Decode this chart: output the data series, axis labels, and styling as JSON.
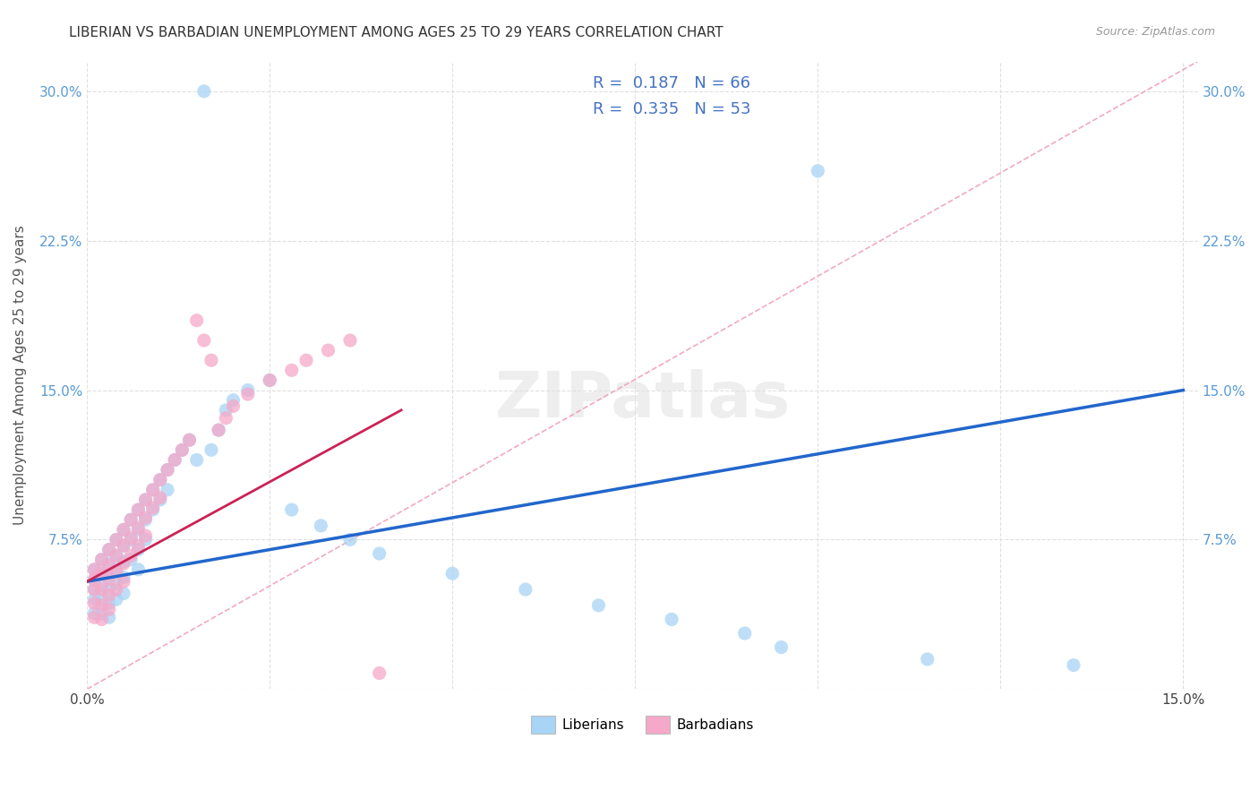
{
  "title": "LIBERIAN VS BARBADIAN UNEMPLOYMENT AMONG AGES 25 TO 29 YEARS CORRELATION CHART",
  "source": "Source: ZipAtlas.com",
  "ylabel": "Unemployment Among Ages 25 to 29 years",
  "xlim": [
    0.0,
    0.152
  ],
  "ylim": [
    0.0,
    0.315
  ],
  "xticks": [
    0.0,
    0.025,
    0.05,
    0.075,
    0.1,
    0.125,
    0.15
  ],
  "yticks": [
    0.0,
    0.075,
    0.15,
    0.225,
    0.3
  ],
  "liberian_color": "#a8d4f5",
  "barbadian_color": "#f5a8c8",
  "liberian_line_color": "#2266cc",
  "barbadian_line_color": "#cc2255",
  "diagonal_color": "#f0a0b8",
  "grid_color": "#e0e0e0",
  "watermark": "ZIPatlas",
  "r1": "0.187",
  "n1": "66",
  "r2": "0.335",
  "n2": "53",
  "lib_line": [
    0.0,
    0.15,
    0.054,
    0.15
  ],
  "barb_line": [
    0.0,
    0.043,
    0.054,
    0.14
  ],
  "diag_line": [
    0.0,
    0.152,
    0.0,
    0.315
  ],
  "liberian_x": [
    0.001,
    0.001,
    0.001,
    0.001,
    0.001,
    0.002,
    0.002,
    0.002,
    0.002,
    0.002,
    0.003,
    0.003,
    0.003,
    0.003,
    0.003,
    0.003,
    0.004,
    0.004,
    0.004,
    0.004,
    0.004,
    0.005,
    0.005,
    0.005,
    0.005,
    0.005,
    0.006,
    0.006,
    0.006,
    0.007,
    0.007,
    0.007,
    0.007,
    0.008,
    0.008,
    0.008,
    0.009,
    0.009,
    0.01,
    0.01,
    0.011,
    0.011,
    0.012,
    0.013,
    0.014,
    0.015,
    0.016,
    0.017,
    0.018,
    0.019,
    0.02,
    0.022,
    0.025,
    0.028,
    0.032,
    0.036,
    0.04,
    0.05,
    0.06,
    0.07,
    0.08,
    0.09,
    0.095,
    0.1,
    0.115,
    0.135
  ],
  "liberian_y": [
    0.06,
    0.055,
    0.05,
    0.045,
    0.038,
    0.065,
    0.058,
    0.052,
    0.045,
    0.038,
    0.07,
    0.063,
    0.057,
    0.05,
    0.043,
    0.036,
    0.075,
    0.067,
    0.06,
    0.053,
    0.045,
    0.08,
    0.072,
    0.064,
    0.056,
    0.048,
    0.085,
    0.075,
    0.065,
    0.09,
    0.08,
    0.07,
    0.06,
    0.095,
    0.085,
    0.075,
    0.1,
    0.09,
    0.105,
    0.095,
    0.11,
    0.1,
    0.115,
    0.12,
    0.125,
    0.115,
    0.3,
    0.12,
    0.13,
    0.14,
    0.145,
    0.15,
    0.155,
    0.09,
    0.082,
    0.075,
    0.068,
    0.058,
    0.05,
    0.042,
    0.035,
    0.028,
    0.021,
    0.26,
    0.015,
    0.012
  ],
  "barbadian_x": [
    0.001,
    0.001,
    0.001,
    0.001,
    0.001,
    0.002,
    0.002,
    0.002,
    0.002,
    0.002,
    0.003,
    0.003,
    0.003,
    0.003,
    0.003,
    0.004,
    0.004,
    0.004,
    0.004,
    0.005,
    0.005,
    0.005,
    0.005,
    0.006,
    0.006,
    0.006,
    0.007,
    0.007,
    0.007,
    0.008,
    0.008,
    0.008,
    0.009,
    0.009,
    0.01,
    0.01,
    0.011,
    0.012,
    0.013,
    0.014,
    0.015,
    0.016,
    0.017,
    0.018,
    0.019,
    0.02,
    0.022,
    0.025,
    0.028,
    0.03,
    0.033,
    0.036,
    0.04
  ],
  "barbadian_y": [
    0.06,
    0.055,
    0.05,
    0.043,
    0.036,
    0.065,
    0.058,
    0.05,
    0.042,
    0.035,
    0.07,
    0.062,
    0.055,
    0.047,
    0.04,
    0.075,
    0.067,
    0.059,
    0.05,
    0.08,
    0.072,
    0.063,
    0.054,
    0.085,
    0.076,
    0.067,
    0.09,
    0.081,
    0.072,
    0.095,
    0.086,
    0.077,
    0.1,
    0.091,
    0.105,
    0.096,
    0.11,
    0.115,
    0.12,
    0.125,
    0.185,
    0.175,
    0.165,
    0.13,
    0.136,
    0.142,
    0.148,
    0.155,
    0.16,
    0.165,
    0.17,
    0.175,
    0.008
  ]
}
